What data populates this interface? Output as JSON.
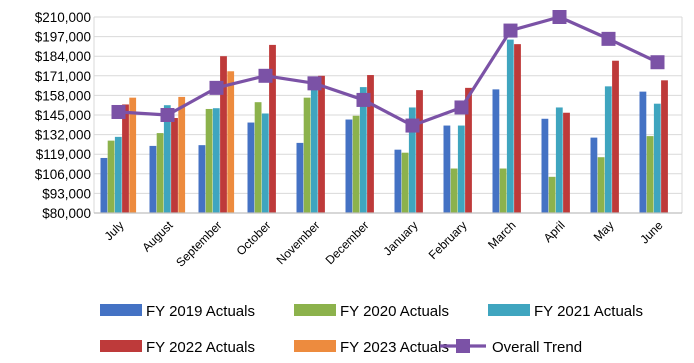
{
  "chart_data": {
    "type": "bar",
    "title": "",
    "xlabel": "",
    "ylabel": "",
    "ylim": [
      80000,
      210000
    ],
    "yticks": [
      "$80,000",
      "$93,000",
      "$106,000",
      "$119,000",
      "$132,000",
      "$145,000",
      "$158,000",
      "$171,000",
      "$184,000",
      "$197,000",
      "$210,000"
    ],
    "ytick_values": [
      80000,
      93000,
      106000,
      119000,
      132000,
      145000,
      158000,
      171000,
      184000,
      197000,
      210000
    ],
    "grid": true,
    "legend_position": "bottom",
    "categories": [
      "July",
      "August",
      "September",
      "October",
      "November",
      "December",
      "January",
      "February",
      "March",
      "April",
      "May",
      "June"
    ],
    "series": [
      {
        "name": "FY 2019 Actuals",
        "color": "#4472C4",
        "values": [
          116500,
          124500,
          125000,
          140000,
          126500,
          142000,
          122000,
          138000,
          162000,
          142500,
          130000,
          160500
        ]
      },
      {
        "name": "FY 2020 Actuals",
        "color": "#8CB24C",
        "values": [
          128000,
          133000,
          149000,
          153500,
          156500,
          144500,
          120000,
          109500,
          109500,
          104000,
          117000,
          131000
        ]
      },
      {
        "name": "FY 2021 Actuals",
        "color": "#3FA5BF",
        "values": [
          130500,
          151500,
          149500,
          146000,
          170000,
          163500,
          150000,
          138000,
          195000,
          150000,
          164000,
          152500
        ]
      },
      {
        "name": "FY 2022 Actuals",
        "color": "#BE3A3A",
        "values": [
          152000,
          143000,
          184000,
          191500,
          171000,
          171500,
          161500,
          163000,
          192000,
          146500,
          181000,
          168000
        ]
      },
      {
        "name": "FY 2023 Actuals",
        "color": "#ED8B3E",
        "values": [
          156500,
          157000,
          174000,
          null,
          null,
          null,
          null,
          null,
          null,
          null,
          null,
          null
        ]
      }
    ],
    "line": {
      "name": "Overall Trend",
      "color": "#7B52A6",
      "values": [
        147000,
        145000,
        163000,
        171000,
        166000,
        155000,
        138000,
        150000,
        201000,
        210000,
        195500,
        180000
      ]
    }
  }
}
